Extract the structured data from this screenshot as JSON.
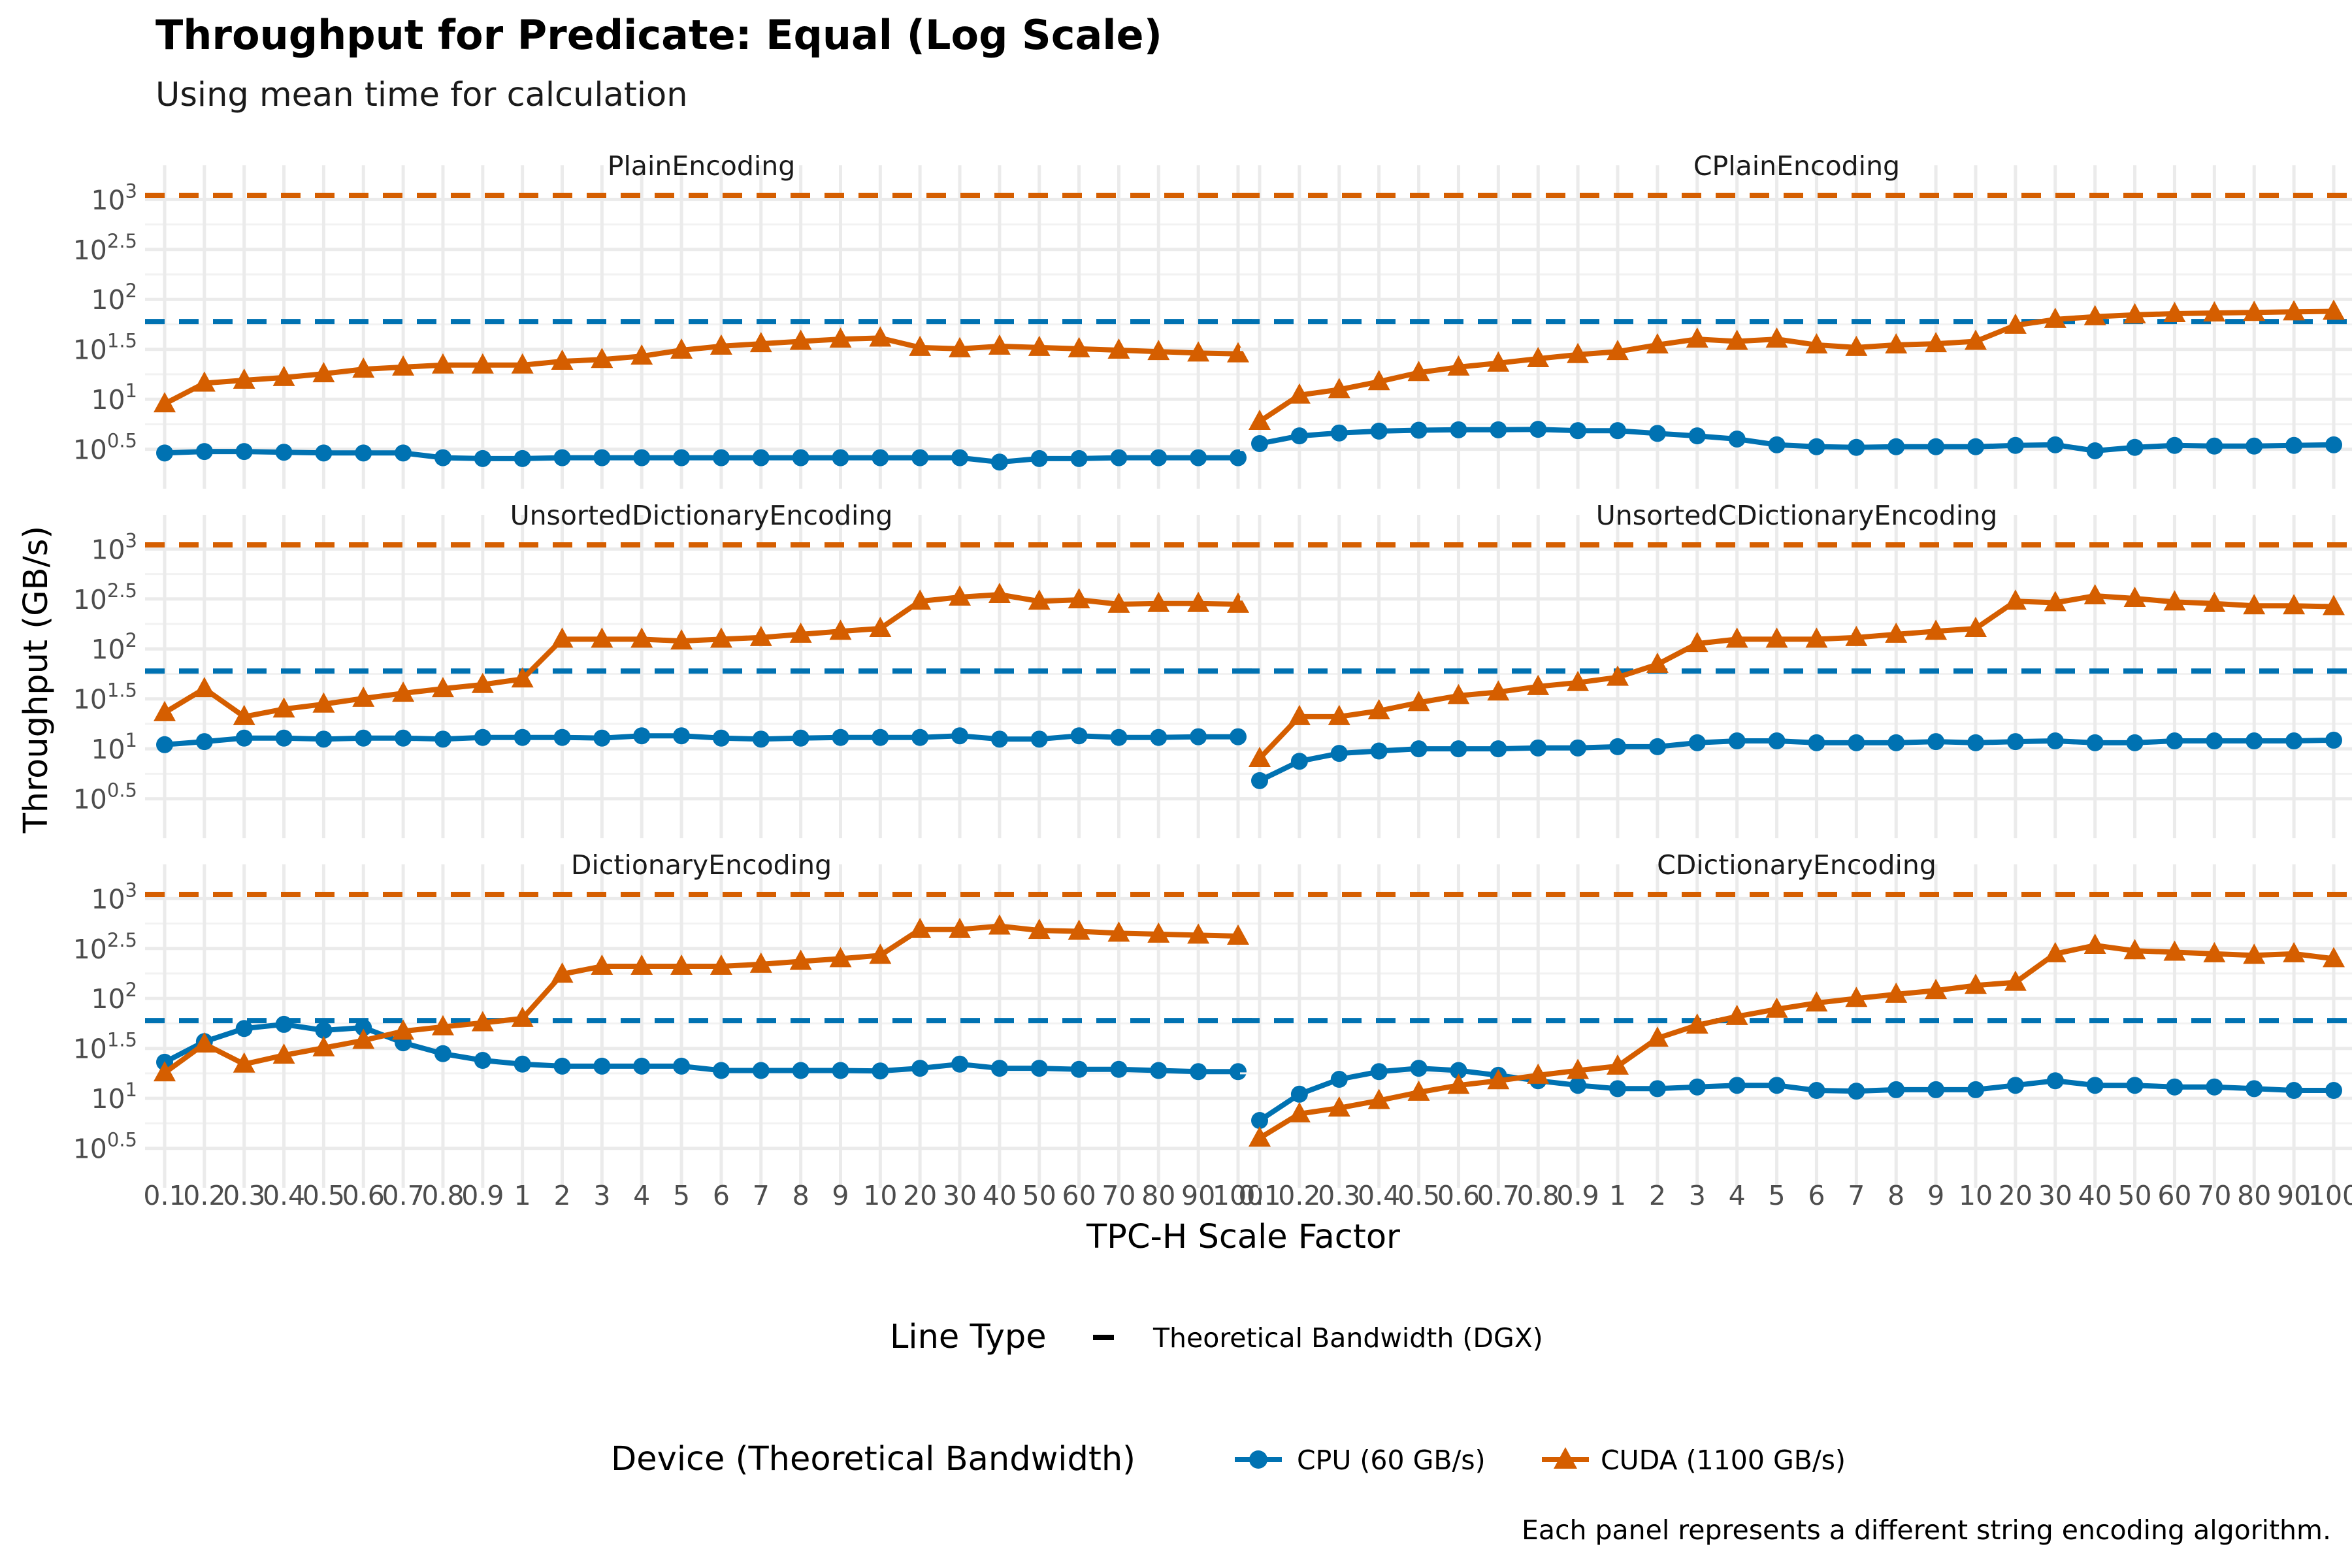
{
  "title": "Throughput for Predicate: Equal (Log Scale)",
  "subtitle": "Using mean time for calculation",
  "caption": "Each panel represents a different string encoding algorithm.",
  "chart_data": {
    "type": "line",
    "facets": true,
    "xlabel": "TPC-H Scale Factor",
    "ylabel": "Throughput (GB/s)",
    "y_scale": "log10",
    "ylim": [
      2.0,
      1400
    ],
    "y_ticks": [
      {
        "value": 3.162,
        "base": "10",
        "exp": "0.5"
      },
      {
        "value": 10,
        "base": "10",
        "exp": "1"
      },
      {
        "value": 31.62,
        "base": "10",
        "exp": "1.5"
      },
      {
        "value": 100,
        "base": "10",
        "exp": "2"
      },
      {
        "value": 316.2,
        "base": "10",
        "exp": "2.5"
      },
      {
        "value": 1000,
        "base": "10",
        "exp": "3"
      }
    ],
    "categories": [
      "0.1",
      "0.2",
      "0.3",
      "0.4",
      "0.5",
      "0.6",
      "0.7",
      "0.8",
      "0.9",
      "1",
      "2",
      "3",
      "4",
      "5",
      "6",
      "7",
      "8",
      "9",
      "10",
      "20",
      "30",
      "40",
      "50",
      "60",
      "70",
      "80",
      "90",
      "100"
    ],
    "reference_lines": [
      {
        "device": "CPU",
        "value": 60,
        "color": "#0072B2"
      },
      {
        "device": "CUDA",
        "value": 1100,
        "color": "#D55E00"
      }
    ],
    "colors": {
      "CPU": "#0072B2",
      "CUDA": "#D55E00"
    },
    "panels": [
      {
        "name": "PlainEncoding",
        "series": [
          {
            "device": "CPU",
            "values": [
              2.9,
              3.0,
              3.0,
              2.95,
              2.9,
              2.9,
              2.9,
              2.6,
              2.55,
              2.55,
              2.6,
              2.6,
              2.6,
              2.6,
              2.6,
              2.6,
              2.6,
              2.6,
              2.6,
              2.6,
              2.6,
              2.35,
              2.55,
              2.55,
              2.6,
              2.6,
              2.6,
              2.6
            ]
          },
          {
            "device": "CUDA",
            "values": [
              9.0,
              14.5,
              15.5,
              16.5,
              18.0,
              20.0,
              21.0,
              22.0,
              22.0,
              22.0,
              24.0,
              25.0,
              27.0,
              31.0,
              34.0,
              36.0,
              38.0,
              40.0,
              41.0,
              33.0,
              32.0,
              34.0,
              33.0,
              32.0,
              31.0,
              30.0,
              29.0,
              28.5
            ]
          }
        ]
      },
      {
        "name": "CPlainEncoding",
        "series": [
          {
            "device": "CPU",
            "values": [
              3.6,
              4.3,
              4.6,
              4.8,
              4.9,
              4.95,
              4.95,
              5.0,
              4.85,
              4.85,
              4.55,
              4.3,
              4.0,
              3.5,
              3.35,
              3.3,
              3.35,
              3.35,
              3.35,
              3.45,
              3.5,
              3.05,
              3.3,
              3.45,
              3.4,
              3.4,
              3.45,
              3.5
            ]
          },
          {
            "device": "CUDA",
            "values": [
              6.0,
              11.0,
              12.5,
              15.0,
              18.5,
              21.0,
              23.0,
              25.5,
              28.0,
              30.0,
              35.0,
              40.0,
              38.0,
              40.0,
              35.0,
              33.0,
              35.0,
              36.0,
              38.0,
              55.0,
              63.0,
              67.0,
              70.0,
              72.0,
              73.0,
              74.0,
              75.0,
              76.0
            ]
          }
        ]
      },
      {
        "name": "UnsortedDictionaryEncoding",
        "series": [
          {
            "device": "CPU",
            "values": [
              11.0,
              11.8,
              12.8,
              12.8,
              12.5,
              12.8,
              12.8,
              12.5,
              13.0,
              13.0,
              13.0,
              12.8,
              13.5,
              13.5,
              12.8,
              12.5,
              12.8,
              13.0,
              13.0,
              13.0,
              13.5,
              12.5,
              12.5,
              13.5,
              13.0,
              13.0,
              13.2,
              13.2
            ]
          },
          {
            "device": "CUDA",
            "values": [
              23.0,
              40.0,
              21.0,
              25.0,
              28.0,
              32.0,
              36.0,
              40.0,
              44.0,
              50.0,
              125.0,
              125.0,
              125.0,
              120.0,
              125.0,
              130.0,
              140.0,
              150.0,
              160.0,
              300.0,
              330.0,
              350.0,
              300.0,
              310.0,
              280.0,
              285.0,
              285.0,
              280.0
            ]
          }
        ]
      },
      {
        "name": "UnsortedCDictionaryEncoding",
        "series": [
          {
            "device": "CPU",
            "values": [
              4.8,
              7.5,
              9.0,
              9.5,
              10.0,
              10.0,
              10.0,
              10.2,
              10.2,
              10.5,
              10.5,
              11.5,
              12.0,
              12.0,
              11.5,
              11.5,
              11.5,
              11.8,
              11.5,
              11.8,
              12.0,
              11.5,
              11.5,
              12.0,
              12.0,
              12.0,
              12.0,
              12.2
            ]
          },
          {
            "device": "CUDA",
            "values": [
              8.0,
              21.0,
              21.0,
              24.0,
              29.0,
              34.0,
              37.0,
              42.0,
              46.0,
              52.0,
              70.0,
              113.0,
              125.0,
              125.0,
              125.0,
              130.0,
              140.0,
              150.0,
              160.0,
              300.0,
              290.0,
              340.0,
              320.0,
              295.0,
              285.0,
              270.0,
              270.0,
              265.0
            ]
          }
        ]
      },
      {
        "name": "DictionaryEncoding",
        "series": [
          {
            "device": "CPU",
            "values": [
              23.0,
              37.0,
              50.0,
              55.0,
              48.0,
              51.0,
              36.0,
              28.0,
              24.0,
              22.0,
              21.0,
              21.0,
              21.0,
              21.0,
              19.0,
              19.0,
              19.0,
              19.0,
              18.8,
              20.0,
              22.0,
              20.0,
              20.0,
              19.5,
              19.5,
              19.0,
              18.5,
              18.5
            ]
          },
          {
            "device": "CUDA",
            "values": [
              18.0,
              35.0,
              22.0,
              27.0,
              32.0,
              38.0,
              47.0,
              52.0,
              57.0,
              63.0,
              175.0,
              210.0,
              210.0,
              210.0,
              210.0,
              220.0,
              235.0,
              250.0,
              270.0,
              490.0,
              490.0,
              530.0,
              480.0,
              470.0,
              450.0,
              440.0,
              430.0,
              420.0
            ]
          }
        ]
      },
      {
        "name": "CDictionaryEncoding",
        "series": [
          {
            "device": "CPU",
            "values": [
              6.0,
              11.0,
              15.5,
              18.5,
              20.0,
              19.0,
              17.0,
              15.0,
              13.5,
              12.5,
              12.5,
              13.0,
              13.5,
              13.5,
              12.0,
              11.8,
              12.2,
              12.2,
              12.2,
              13.5,
              15.0,
              13.5,
              13.5,
              13.0,
              13.0,
              12.5,
              12.0,
              12.0
            ]
          },
          {
            "device": "CUDA",
            "values": [
              4.0,
              7.0,
              8.0,
              9.5,
              11.5,
              13.5,
              15.0,
              17.0,
              19.0,
              21.0,
              40.0,
              54.0,
              66.0,
              78.0,
              90.0,
              100.0,
              110.0,
              120.0,
              135.0,
              145.0,
              280.0,
              340.0,
              300.0,
              290.0,
              280.0,
              270.0,
              280.0,
              250.0
            ]
          }
        ]
      }
    ],
    "legend": {
      "position": "bottom",
      "linetype": {
        "title": "Line Type",
        "label": "Theoretical Bandwidth (DGX)"
      },
      "device": {
        "title": "Device (Theoretical Bandwidth)",
        "labels": [
          "CPU (60 GB/s)",
          "CUDA (1100 GB/s)"
        ]
      }
    },
    "grid": true
  }
}
